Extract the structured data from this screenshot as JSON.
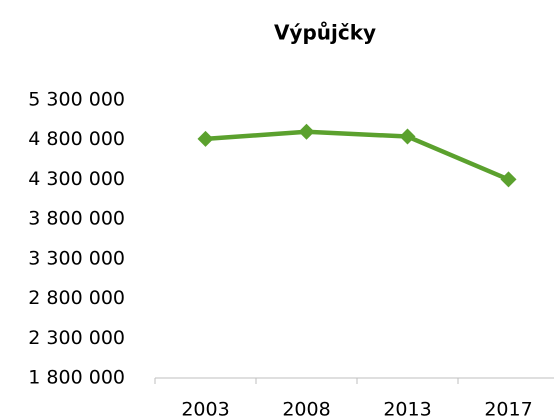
{
  "chart_data": {
    "type": "line",
    "title": "Výpůjčky",
    "categories": [
      "2003",
      "2008",
      "2013",
      "2017"
    ],
    "series": [
      {
        "name": "Výpůjčky",
        "color": "#5ba12e",
        "values": [
          4810000,
          4900000,
          4840000,
          4300000
        ]
      }
    ],
    "ylim": [
      1800000,
      5300000
    ],
    "yticks": [
      {
        "value": 1800000,
        "label": "1 800 000"
      },
      {
        "value": 2300000,
        "label": "2 300 000"
      },
      {
        "value": 2800000,
        "label": "2 800 000"
      },
      {
        "value": 3300000,
        "label": "3 300 000"
      },
      {
        "value": 3800000,
        "label": "3 800 000"
      },
      {
        "value": 4300000,
        "label": "4 300 000"
      },
      {
        "value": 4800000,
        "label": "4 800 000"
      },
      {
        "value": 5300000,
        "label": "5 300 000"
      }
    ],
    "grid": false
  }
}
